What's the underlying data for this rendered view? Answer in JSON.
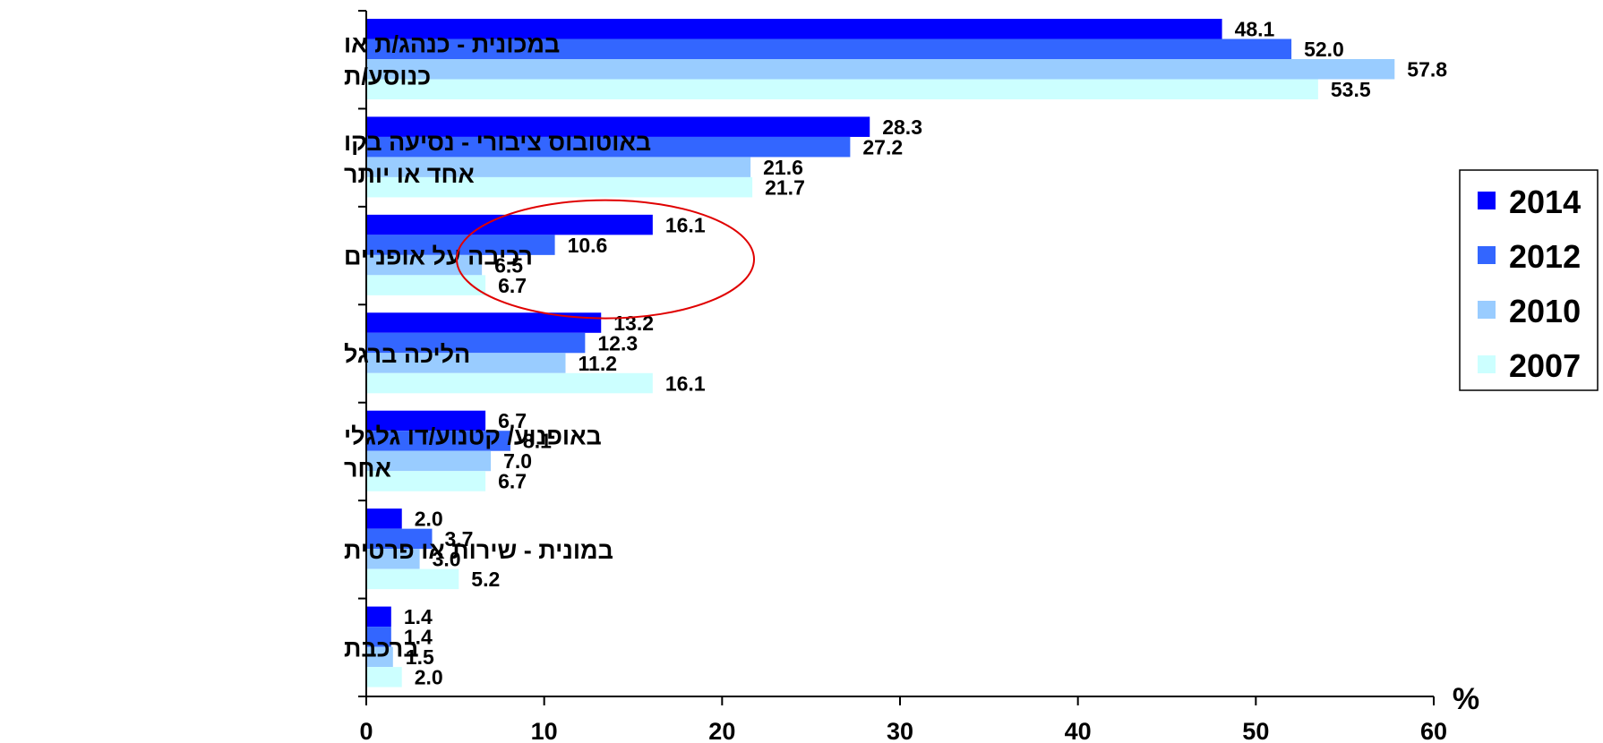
{
  "chart_data": {
    "type": "bar",
    "orientation": "horizontal",
    "categories": [
      [
        "במכונית - כנהג/ת או",
        "כנוסע/ת"
      ],
      [
        "באוטובוס ציבורי - נסיעה בקו",
        "אחד או יותר"
      ],
      [
        "רכיבה על אופניים"
      ],
      [
        "הליכה ברגל"
      ],
      [
        "באופנוע/ קטנוע/דו גלגלי",
        "אחר"
      ],
      [
        "במונית - שירות או פרטית"
      ],
      [
        "ברכבת"
      ]
    ],
    "series": [
      {
        "name": "2014",
        "color": "#0000ff",
        "values": [
          48.1,
          28.3,
          16.1,
          13.2,
          6.7,
          2.0,
          1.4
        ],
        "labels": [
          "48.1",
          "28.3",
          "16.1",
          "13.2",
          "6.7",
          "2.0",
          "1.4"
        ]
      },
      {
        "name": "2012",
        "color": "#3366ff",
        "values": [
          52.0,
          27.2,
          10.6,
          12.3,
          8.1,
          3.7,
          1.4
        ],
        "labels": [
          "52.0",
          "27.2",
          "10.6",
          "12.3",
          "8.1",
          "3.7",
          "1.4"
        ]
      },
      {
        "name": "2010",
        "color": "#99ccff",
        "values": [
          57.8,
          21.6,
          6.5,
          11.2,
          7.0,
          3.0,
          1.5
        ],
        "labels": [
          "57.8",
          "21.6",
          "6.5",
          "11.2",
          "7.0",
          "3.0",
          "1.5"
        ]
      },
      {
        "name": "2007",
        "color": "#ccffff",
        "values": [
          53.5,
          21.7,
          6.7,
          16.1,
          6.7,
          5.2,
          2.0
        ],
        "labels": [
          "53.5",
          "21.7",
          "6.7",
          "16.1",
          "6.7",
          "5.2",
          "2.0"
        ]
      }
    ],
    "xlim": [
      0,
      60
    ],
    "xticks": [
      0,
      10,
      20,
      30,
      40,
      50,
      60
    ],
    "xtick_labels": [
      "0",
      "10",
      "20",
      "30",
      "40",
      "50",
      "60"
    ],
    "unit_label": "%",
    "legend_position": "right",
    "grid": false,
    "annotation": {
      "type": "ellipse",
      "color": "#e00000",
      "around": "רכיבה על אופניים"
    }
  }
}
